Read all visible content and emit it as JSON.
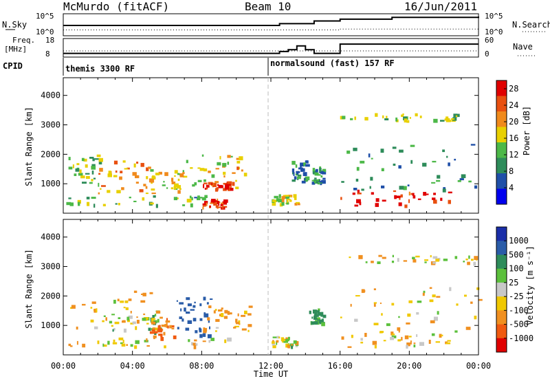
{
  "header": {
    "station": "McMurdo (fitACF)",
    "beam": "Beam 10",
    "date": "16/Jun/2011"
  },
  "top_panels": {
    "nsky_label": "N.Sky",
    "nsky_ticks": [
      "10^5",
      "10^0"
    ],
    "nsearch_label": "N.Search",
    "nsearch_ticks": [
      "10^5",
      "10^0"
    ],
    "freq_label": "Freq.",
    "freq_unit": "[MHz]",
    "freq_ticks": [
      "18",
      "8"
    ],
    "nave_label": "Nave",
    "nave_ticks": [
      "60",
      "0"
    ],
    "cpid_label": "CPID",
    "cpid_1": "themis 3300 RF",
    "cpid_2": "normalsound (fast) 157 RF"
  },
  "panels": {
    "y_label": "Slant Range [km]",
    "x_label": "Time UT",
    "y_ticks": [
      "4000",
      "3000",
      "2000",
      "1000"
    ],
    "x_ticks": [
      "00:00",
      "04:00",
      "08:00",
      "12:00",
      "16:00",
      "20:00",
      "00:00"
    ],
    "power_label": "Power [dB]",
    "power_ticks": [
      "28",
      "24",
      "20",
      "16",
      "12",
      "8",
      "4"
    ],
    "velocity_label": "Velocity [m s⁻¹]",
    "velocity_ticks": [
      "1000",
      "500",
      "100",
      "25",
      "-25",
      "-100",
      "-500",
      "-1000"
    ]
  },
  "colors": {
    "power": [
      "#0000ee",
      "#1f4fa8",
      "#2e8c5a",
      "#4cb848",
      "#e8d000",
      "#f08a1c",
      "#e85010",
      "#e00000"
    ],
    "velocity": [
      "#1a2ea8",
      "#2a5ca8",
      "#2e8c5a",
      "#5cc03c",
      "#c8c8c8",
      "#f0c800",
      "#f09020",
      "#f05a10",
      "#e00000"
    ]
  },
  "chart_data": [
    {
      "type": "line",
      "title": "N.Sky / N.Search",
      "x_range_hours": [
        0,
        24
      ],
      "series": [
        {
          "name": "N.Sky",
          "x": [
            0,
            12.5,
            14.5,
            16,
            19,
            20.5,
            24
          ],
          "y": [
            0.5,
            0.6,
            0.75,
            0.85,
            0.95,
            0.95,
            1.0
          ]
        },
        {
          "name": "N.Search",
          "x": [
            0,
            16,
            24
          ],
          "y": [
            0.25,
            0.3,
            0.3
          ]
        }
      ]
    },
    {
      "type": "line",
      "title": "Freq. / Nave",
      "x_range_hours": [
        0,
        24
      ],
      "series": [
        {
          "name": "Freq. (MHz)",
          "x": [
            0,
            12,
            12.5,
            13,
            13.5,
            14,
            14.5,
            16,
            24
          ],
          "y": [
            10,
            10,
            11,
            12,
            14,
            12,
            10,
            15,
            15
          ]
        },
        {
          "name": "Nave",
          "x": [
            0,
            24
          ],
          "y": [
            20,
            20
          ]
        }
      ]
    },
    {
      "type": "heatmap",
      "title": "Power [dB]",
      "x_ticks": [
        "00:00",
        "04:00",
        "08:00",
        "12:00",
        "16:00",
        "20:00",
        "00:00"
      ],
      "y_ticks": [
        1000,
        2000,
        3000,
        4000
      ],
      "colorbar_ticks": [
        4,
        8,
        12,
        16,
        20,
        24,
        28
      ],
      "colorbar_range": [
        0,
        30
      ],
      "regions": [
        {
          "t0": 0.3,
          "t1": 2.2,
          "r0": 900,
          "r1": 2000,
          "level": 14
        },
        {
          "t0": 2.0,
          "t1": 5.0,
          "r0": 700,
          "r1": 1800,
          "level": 20
        },
        {
          "t0": 5.0,
          "t1": 7.0,
          "r0": 700,
          "r1": 1500,
          "level": 16
        },
        {
          "t0": 7.0,
          "t1": 10.5,
          "r0": 800,
          "r1": 2000,
          "level": 18
        },
        {
          "t0": 8.0,
          "t1": 10.0,
          "r0": 850,
          "r1": 1100,
          "level": 27
        },
        {
          "t0": 8.0,
          "t1": 9.3,
          "r0": 200,
          "r1": 500,
          "level": 25
        },
        {
          "t0": 0.0,
          "t1": 8.5,
          "r0": 300,
          "r1": 650,
          "level": 12
        },
        {
          "t0": 12.0,
          "t1": 13.6,
          "r0": 300,
          "r1": 650,
          "level": 16
        },
        {
          "t0": 13.2,
          "t1": 14.0,
          "r0": 1100,
          "r1": 1800,
          "level": 9
        },
        {
          "t0": 14.3,
          "t1": 15.0,
          "r0": 1000,
          "r1": 1600,
          "level": 10
        },
        {
          "t0": 16.0,
          "t1": 22.5,
          "r0": 250,
          "r1": 800,
          "level": 26
        },
        {
          "t0": 16.0,
          "t1": 24.0,
          "r0": 3150,
          "r1": 3400,
          "level": 14
        },
        {
          "t0": 16.0,
          "t1": 24.0,
          "r0": 800,
          "r1": 2400,
          "level": 10
        }
      ]
    },
    {
      "type": "heatmap",
      "title": "Velocity [m s⁻¹]",
      "x_ticks": [
        "00:00",
        "04:00",
        "08:00",
        "12:00",
        "16:00",
        "20:00",
        "00:00"
      ],
      "y_ticks": [
        1000,
        2000,
        3000,
        4000
      ],
      "colorbar_ticks": [
        1000,
        500,
        100,
        25,
        -25,
        -100,
        -500,
        -1000
      ],
      "regions": [
        {
          "t0": 0.3,
          "t1": 5.5,
          "r0": 900,
          "r1": 2200,
          "level": -100
        },
        {
          "t0": 2.5,
          "t1": 5.5,
          "r0": 800,
          "r1": 1400,
          "level": 0
        },
        {
          "t0": 5.0,
          "t1": 6.5,
          "r0": 600,
          "r1": 1300,
          "level": -500
        },
        {
          "t0": 6.5,
          "t1": 8.5,
          "r0": 700,
          "r1": 2000,
          "level": 700
        },
        {
          "t0": 8.0,
          "t1": 10.8,
          "r0": 800,
          "r1": 1700,
          "level": -150
        },
        {
          "t0": 0.0,
          "t1": 10.0,
          "r0": 300,
          "r1": 600,
          "level": -60
        },
        {
          "t0": 12.0,
          "t1": 13.6,
          "r0": 300,
          "r1": 650,
          "level": -40
        },
        {
          "t0": 14.2,
          "t1": 15.0,
          "r0": 1100,
          "r1": 1600,
          "level": 200
        },
        {
          "t0": 16.0,
          "t1": 22.5,
          "r0": 250,
          "r1": 800,
          "level": -100
        },
        {
          "t0": 16.0,
          "t1": 24.0,
          "r0": 3150,
          "r1": 3400,
          "level": -50
        },
        {
          "t0": 16.0,
          "t1": 24.0,
          "r0": 800,
          "r1": 2400,
          "level": -80
        }
      ]
    }
  ]
}
